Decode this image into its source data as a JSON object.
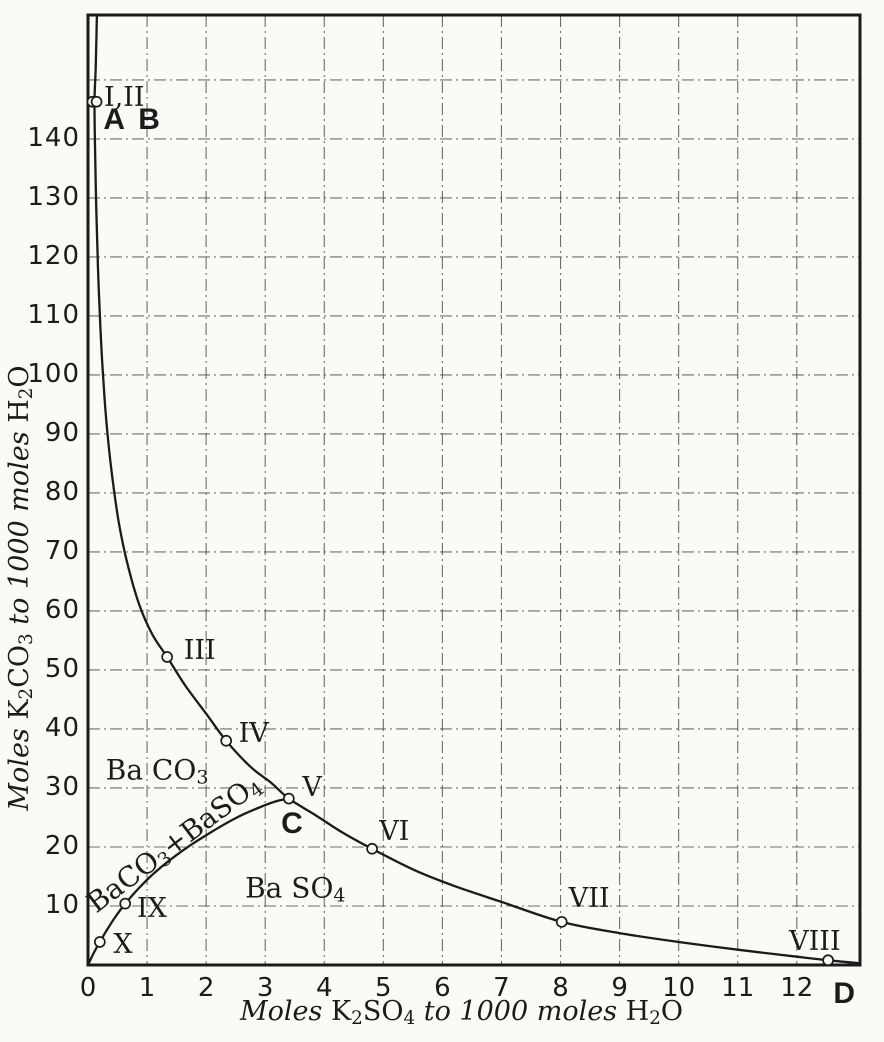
{
  "figure": {
    "paper_color": "#fbfaf6",
    "ink_color": "#1b1b1b",
    "grid_color": "#4a4a4a"
  },
  "chart_data": {
    "type": "line",
    "title": "",
    "xlabel": "Moles K₂SO₄ to 1000 moles H₂O",
    "ylabel": "Moles K₂CO₃ to 1000 moles H₂O",
    "xlabel_parts": [
      {
        "t": "Moles ",
        "i": 1
      },
      {
        "t": "K"
      },
      {
        "t": "2",
        "s": 1
      },
      {
        "t": "SO"
      },
      {
        "t": "4",
        "s": 1
      },
      {
        "t": " to 1000 moles ",
        "i": 1
      },
      {
        "t": "H"
      },
      {
        "t": "2",
        "s": 1
      },
      {
        "t": "O"
      }
    ],
    "ylabel_parts": [
      {
        "t": "Moles ",
        "i": 1
      },
      {
        "t": "K"
      },
      {
        "t": "2",
        "s": 1
      },
      {
        "t": "CO"
      },
      {
        "t": "3",
        "s": 1
      },
      {
        "t": " to 1000 moles ",
        "i": 1
      },
      {
        "t": "H"
      },
      {
        "t": "2",
        "s": 1
      },
      {
        "t": "O"
      }
    ],
    "xlim": [
      0,
      13.07
    ],
    "ylim": [
      0,
      161
    ],
    "xticks": [
      0,
      1,
      2,
      3,
      4,
      5,
      6,
      7,
      8,
      9,
      10,
      11,
      12
    ],
    "yticks": [
      10,
      20,
      30,
      40,
      50,
      60,
      70,
      80,
      90,
      100,
      110,
      120,
      130,
      140
    ],
    "xgrid": [
      1,
      2,
      3,
      4,
      5,
      6,
      7,
      8,
      9,
      10,
      11,
      12
    ],
    "ygrid": [
      10,
      20,
      30,
      40,
      50,
      60,
      70,
      80,
      90,
      100,
      110,
      120,
      130,
      140,
      150
    ],
    "grid_style": "dash-dot",
    "legend": "none",
    "series": [
      {
        "name": "solubility-curve-A-B-to-D",
        "points": [
          [
            0.15,
            161
          ],
          [
            0.13,
            152
          ],
          [
            0.11,
            146.3
          ],
          [
            0.12,
            138
          ],
          [
            0.14,
            128
          ],
          [
            0.17,
            118
          ],
          [
            0.21,
            108
          ],
          [
            0.26,
            99
          ],
          [
            0.33,
            90
          ],
          [
            0.42,
            82
          ],
          [
            0.53,
            74.5
          ],
          [
            0.68,
            67.5
          ],
          [
            0.87,
            61
          ],
          [
            1.09,
            56
          ],
          [
            1.34,
            52.2
          ],
          [
            1.65,
            47.3
          ],
          [
            2.0,
            42.6
          ],
          [
            2.34,
            38
          ],
          [
            2.75,
            33.6
          ],
          [
            3.1,
            30.9
          ],
          [
            3.4,
            28.2
          ],
          [
            3.85,
            25.4
          ],
          [
            4.3,
            22.5
          ],
          [
            4.81,
            19.7
          ],
          [
            5.5,
            16.2
          ],
          [
            6.2,
            13.4
          ],
          [
            7.0,
            10.7
          ],
          [
            8.02,
            7.3
          ],
          [
            9.0,
            5.4
          ],
          [
            10.0,
            3.9
          ],
          [
            11.0,
            2.6
          ],
          [
            12.0,
            1.4
          ],
          [
            12.53,
            0.8
          ],
          [
            13.07,
            0.3
          ]
        ]
      },
      {
        "name": "phase-boundary-curve-O-to-C",
        "points": [
          [
            0,
            0
          ],
          [
            0.1,
            2.1
          ],
          [
            0.2,
            3.9
          ],
          [
            0.33,
            6.1
          ],
          [
            0.48,
            8.4
          ],
          [
            0.63,
            10.4
          ],
          [
            0.85,
            12.9
          ],
          [
            1.1,
            15.4
          ],
          [
            1.4,
            17.9
          ],
          [
            1.75,
            20.4
          ],
          [
            2.1,
            22.6
          ],
          [
            2.5,
            24.9
          ],
          [
            2.9,
            26.7
          ],
          [
            3.2,
            27.8
          ],
          [
            3.4,
            28.2
          ]
        ]
      }
    ],
    "labeled_points": [
      {
        "label": "I,II",
        "x": 0.11,
        "y": 146.3,
        "label_x": 0.27,
        "label_y": 146.8,
        "double": true
      },
      {
        "label": "III",
        "x": 1.34,
        "y": 52.2,
        "label_x": 1.62,
        "label_y": 53.0
      },
      {
        "label": "IV",
        "x": 2.34,
        "y": 38.0,
        "label_x": 2.55,
        "label_y": 38.9
      },
      {
        "label": "V",
        "x": 3.4,
        "y": 28.2,
        "label_x": 3.63,
        "label_y": 29.8
      },
      {
        "label": "VI",
        "x": 4.81,
        "y": 19.7,
        "label_x": 4.93,
        "label_y": 22.3
      },
      {
        "label": "VII",
        "x": 8.02,
        "y": 7.3,
        "label_x": 8.14,
        "label_y": 11.0
      },
      {
        "label": "VIII",
        "x": 12.53,
        "y": 0.8,
        "label_x": 11.87,
        "label_y": 3.8
      },
      {
        "label": "IX",
        "x": 0.63,
        "y": 10.4,
        "label_x": 0.83,
        "label_y": 9.3
      },
      {
        "label": "X",
        "x": 0.2,
        "y": 3.9,
        "label_x": 0.43,
        "label_y": 3.2
      }
    ],
    "letter_labels": [
      {
        "text": "A B",
        "x": 0.26,
        "y": 143.0
      },
      {
        "text": "C",
        "x": 3.27,
        "y": 23.8
      },
      {
        "text": "D",
        "x": 12.62,
        "y": -5.0
      }
    ],
    "region_labels": [
      {
        "text": "Ba CO₃",
        "parts": [
          {
            "t": "Ba CO"
          },
          {
            "t": "3",
            "s": 1
          }
        ],
        "x": 1.17,
        "y": 32.7,
        "rotate": 0
      },
      {
        "text": "BaCO₃+BaSO₄",
        "parts": [
          {
            "t": "BaCO"
          },
          {
            "t": "3",
            "s": 1
          },
          {
            "t": "+BaSO"
          },
          {
            "t": "4",
            "s": 1
          }
        ],
        "x": 1.47,
        "y": 20.3,
        "rotate": -37
      },
      {
        "text": "Ba SO₄",
        "parts": [
          {
            "t": "Ba SO"
          },
          {
            "t": "4",
            "s": 1
          }
        ],
        "x": 3.51,
        "y": 12.7,
        "rotate": 0
      }
    ]
  }
}
